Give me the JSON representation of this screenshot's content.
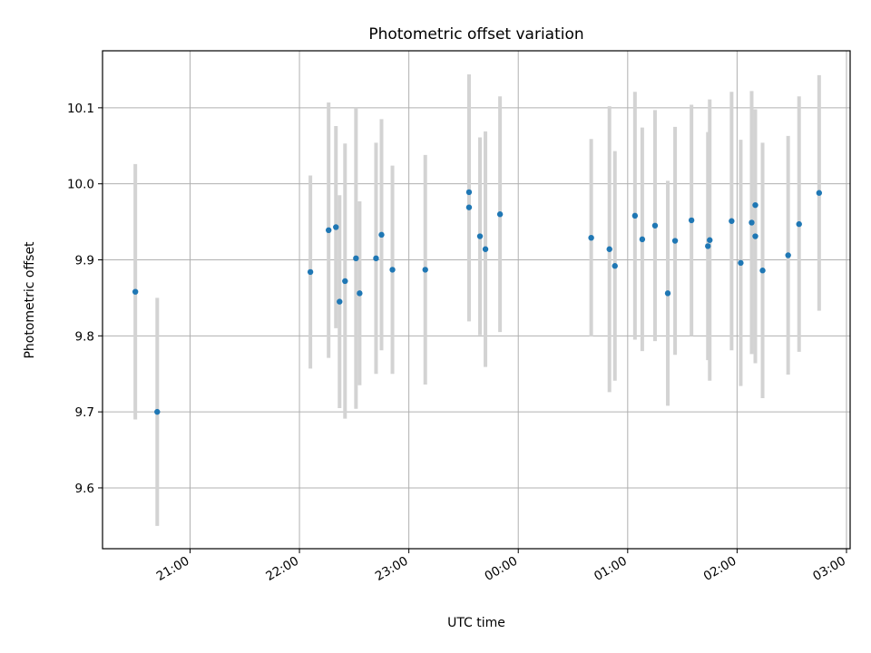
{
  "chart_data": {
    "type": "scatter",
    "title": "Photometric offset variation",
    "xlabel": "UTC time",
    "ylabel": "Photometric offset",
    "grid": true,
    "x_axis_type": "time",
    "x_ticks": [
      "21:00",
      "22:00",
      "23:00",
      "00:00",
      "01:00",
      "02:00",
      "03:00"
    ],
    "y_ticks": [
      "9.6",
      "9.7",
      "9.8",
      "9.9",
      "10.0",
      "10.1"
    ],
    "xlim": [
      "20:12",
      "03:02"
    ],
    "ylim": [
      9.52,
      10.175
    ],
    "colors": {
      "marker": "#1f77b4",
      "errorbar": "#d3d3d3",
      "grid": "#b0b0b0"
    },
    "series": [
      {
        "points": [
          {
            "x": "20:30",
            "y": 9.858,
            "err": 0.168
          },
          {
            "x": "20:42",
            "y": 9.7,
            "err": 0.15
          },
          {
            "x": "22:06",
            "y": 9.884,
            "err": 0.127
          },
          {
            "x": "22:16",
            "y": 9.939,
            "err": 0.168
          },
          {
            "x": "22:20",
            "y": 9.943,
            "err": 0.133
          },
          {
            "x": "22:22",
            "y": 9.845,
            "err": 0.14
          },
          {
            "x": "22:25",
            "y": 9.872,
            "err": 0.181
          },
          {
            "x": "22:31",
            "y": 9.902,
            "err": 0.198
          },
          {
            "x": "22:33",
            "y": 9.856,
            "err": 0.121
          },
          {
            "x": "22:42",
            "y": 9.902,
            "err": 0.152
          },
          {
            "x": "22:45",
            "y": 9.933,
            "err": 0.152
          },
          {
            "x": "22:51",
            "y": 9.887,
            "err": 0.137
          },
          {
            "x": "23:09",
            "y": 9.887,
            "err": 0.151
          },
          {
            "x": "23:33",
            "y": 9.989,
            "err": 0.155
          },
          {
            "x": "23:33",
            "y": 9.969,
            "err": 0.15
          },
          {
            "x": "23:39",
            "y": 9.931,
            "err": 0.13
          },
          {
            "x": "23:42",
            "y": 9.914,
            "err": 0.155
          },
          {
            "x": "23:50",
            "y": 9.96,
            "err": 0.155
          },
          {
            "x": "00:40",
            "y": 9.929,
            "err": 0.13
          },
          {
            "x": "00:50",
            "y": 9.914,
            "err": 0.188
          },
          {
            "x": "00:53",
            "y": 9.892,
            "err": 0.151
          },
          {
            "x": "01:04",
            "y": 9.958,
            "err": 0.163
          },
          {
            "x": "01:08",
            "y": 9.927,
            "err": 0.147
          },
          {
            "x": "01:15",
            "y": 9.945,
            "err": 0.152
          },
          {
            "x": "01:22",
            "y": 9.856,
            "err": 0.148
          },
          {
            "x": "01:26",
            "y": 9.925,
            "err": 0.15
          },
          {
            "x": "01:35",
            "y": 9.952,
            "err": 0.152
          },
          {
            "x": "01:44",
            "y": 9.918,
            "err": 0.15
          },
          {
            "x": "01:45",
            "y": 9.926,
            "err": 0.185
          },
          {
            "x": "01:57",
            "y": 9.951,
            "err": 0.17
          },
          {
            "x": "02:02",
            "y": 9.896,
            "err": 0.162
          },
          {
            "x": "02:08",
            "y": 9.949,
            "err": 0.173
          },
          {
            "x": "02:10",
            "y": 9.972,
            "err": 0.125
          },
          {
            "x": "02:10",
            "y": 9.931,
            "err": 0.167
          },
          {
            "x": "02:14",
            "y": 9.886,
            "err": 0.168
          },
          {
            "x": "02:28",
            "y": 9.906,
            "err": 0.157
          },
          {
            "x": "02:34",
            "y": 9.947,
            "err": 0.168
          },
          {
            "x": "02:45",
            "y": 9.988,
            "err": 0.155
          }
        ]
      }
    ]
  }
}
